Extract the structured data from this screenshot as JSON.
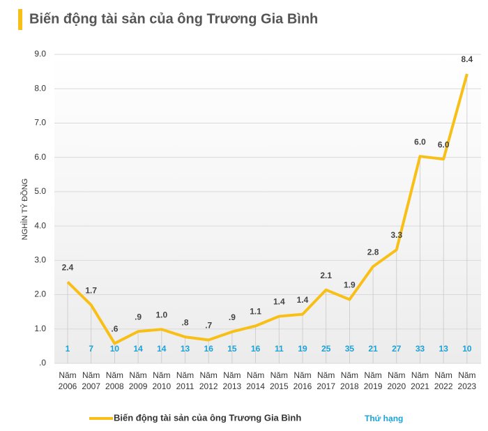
{
  "chart_data": {
    "type": "line",
    "title": "Biến động tài sản của ông Trương Gia Bình",
    "y_label": "NGHÌN TỶ ĐỒNG",
    "categories": [
      "Năm 2006",
      "Năm 2007",
      "Năm 2008",
      "Năm 2009",
      "Năm 2010",
      "Năm 2011",
      "Năm 2012",
      "Năm 2013",
      "Năm 2014",
      "Năm 2015",
      "Năm 2016",
      "Năm 2017",
      "Năm 2018",
      "Năm 2019",
      "Năm 2020",
      "Năm 2021",
      "Năm 2022",
      "Năm 2023"
    ],
    "series": [
      {
        "name": "Biến động tài sản của ông Trương Gia Bình",
        "color": "#f8bf16",
        "values": [
          2.37,
          1.7,
          0.58,
          0.93,
          0.99,
          0.77,
          0.68,
          0.92,
          1.09,
          1.37,
          1.43,
          2.14,
          1.86,
          2.82,
          3.31,
          6.03,
          5.95,
          8.43
        ],
        "value_labels": [
          "2.4",
          "1.7",
          ".6",
          ".9",
          "1.0",
          ".8",
          ".7",
          ".9",
          "1.1",
          "1.4",
          "1.4",
          "2.1",
          "1.9",
          "2.8",
          "3.3",
          "6.0",
          "6.0",
          "8.4"
        ]
      }
    ],
    "rank_labels": {
      "name": "Thứ hạng",
      "color": "#1aa3d9",
      "values": [
        1,
        7,
        10,
        14,
        14,
        13,
        16,
        15,
        16,
        11,
        19,
        25,
        35,
        21,
        27,
        33,
        13,
        10
      ]
    },
    "ylim": [
      0,
      9
    ],
    "yticks": [
      {
        "value": 0,
        "label": ".0"
      },
      {
        "value": 1,
        "label": "1.0"
      },
      {
        "value": 2,
        "label": "2.0"
      },
      {
        "value": 3,
        "label": "3.0"
      },
      {
        "value": 4,
        "label": "4.0"
      },
      {
        "value": 5,
        "label": "5.0"
      },
      {
        "value": 6,
        "label": "6.0"
      },
      {
        "value": 7,
        "label": "7.0"
      },
      {
        "value": 8,
        "label": "8.0"
      },
      {
        "value": 9,
        "label": "9.0"
      }
    ],
    "grid": true
  }
}
